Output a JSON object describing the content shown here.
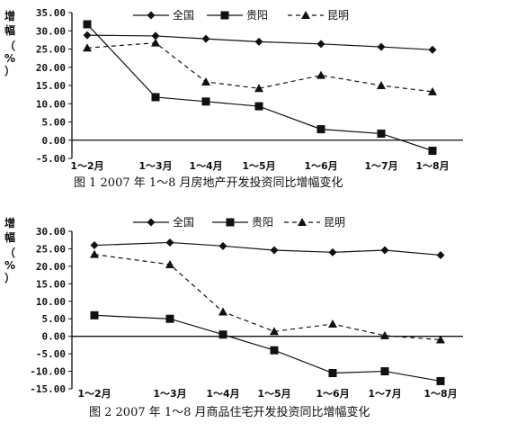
{
  "chart_data": [
    {
      "type": "line",
      "title": "图 1   2007 年 1～8 月房地产开发投资同比增幅变化",
      "ylabel": [
        "增",
        "幅",
        "（",
        "%",
        "）"
      ],
      "categories": [
        "1～2月",
        "1～3月",
        "1～4月",
        "1～5月",
        "1～6月",
        "1～7月",
        "1～8月"
      ],
      "ylim": [
        -5,
        35
      ],
      "yticks": [
        35,
        30,
        25,
        20,
        15,
        10,
        5,
        0,
        -5
      ],
      "ytick_labels": [
        "35.00",
        "30.00",
        "25.00",
        "20.00",
        "15.00",
        "10.00",
        "5.00",
        "0.00",
        "-5.00"
      ],
      "legend_position": "top-center",
      "grid": false,
      "series": [
        {
          "name": "全国",
          "marker": "diamond",
          "dash": "solid",
          "values": [
            28.8,
            28.6,
            27.8,
            27.0,
            26.4,
            25.6,
            24.8
          ]
        },
        {
          "name": "贵阳",
          "marker": "square",
          "dash": "solid",
          "values": [
            31.8,
            11.8,
            10.6,
            9.3,
            3.0,
            1.8,
            -2.9
          ]
        },
        {
          "name": "昆明",
          "marker": "triangle",
          "dash": "dashed",
          "values": [
            25.3,
            26.7,
            16.0,
            14.2,
            17.8,
            15.0,
            13.3
          ]
        }
      ]
    },
    {
      "type": "line",
      "title": "图 2   2007 年 1～8 月商品住宅开发投资同比增幅变化",
      "ylabel": [
        "增",
        "幅",
        "（",
        "%",
        "）"
      ],
      "categories": [
        "1～2月",
        "1～3月",
        "1～4月",
        "1～5月",
        "1～6月",
        "1～7月",
        "1～8月"
      ],
      "ylim": [
        -15,
        30
      ],
      "yticks": [
        30,
        25,
        20,
        15,
        10,
        5,
        0,
        -5,
        -10,
        -15
      ],
      "ytick_labels": [
        "30.00",
        "25.00",
        "20.00",
        "15.00",
        "10.00",
        "5.00",
        "0.00",
        "-5.00",
        "-10.00",
        "-15.00"
      ],
      "legend_position": "top-center",
      "grid": false,
      "series": [
        {
          "name": "全国",
          "marker": "diamond",
          "dash": "solid",
          "values": [
            26.0,
            26.8,
            25.8,
            24.6,
            24.0,
            24.6,
            23.2
          ]
        },
        {
          "name": "贵阳",
          "marker": "square",
          "dash": "solid",
          "values": [
            6.0,
            5.0,
            0.5,
            -4.0,
            -10.5,
            -10.0,
            -12.8
          ]
        },
        {
          "name": "昆明",
          "marker": "triangle",
          "dash": "dashed",
          "values": [
            23.4,
            20.5,
            7.0,
            1.4,
            3.5,
            0.2,
            -1.0
          ]
        }
      ]
    }
  ]
}
